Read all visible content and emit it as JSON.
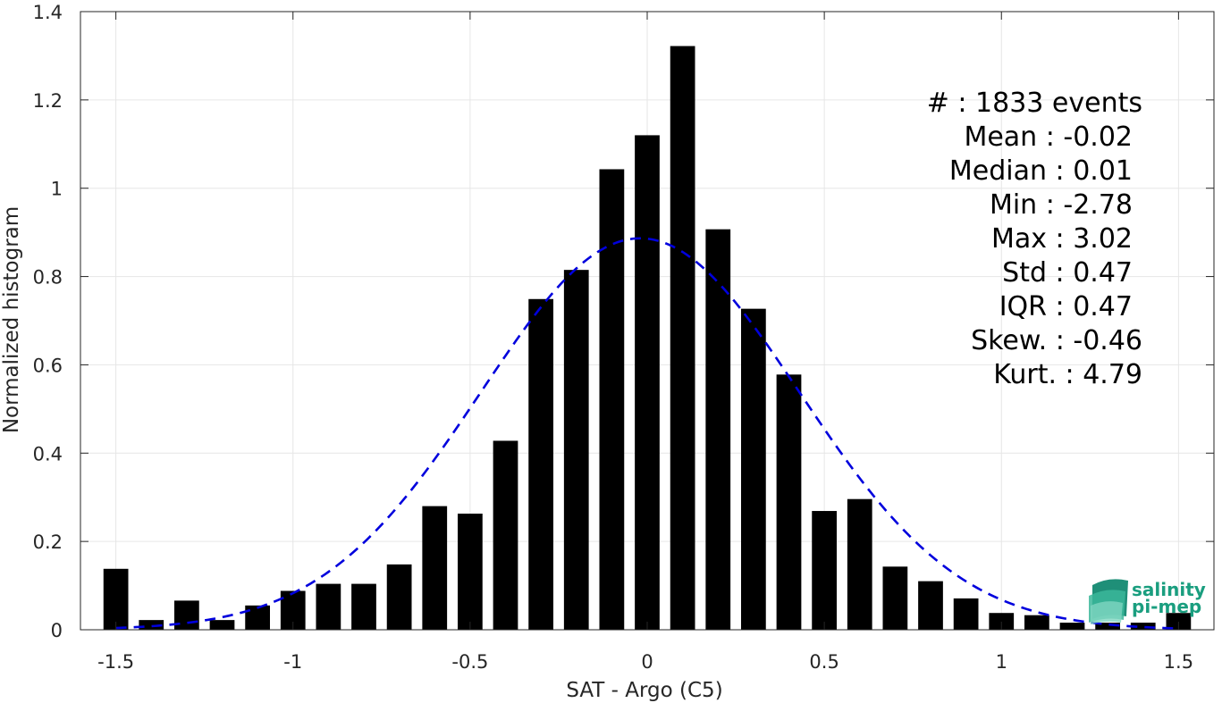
{
  "chart_data": {
    "type": "bar",
    "xlabel": "SAT - Argo (C5)",
    "ylabel": "Normalized histogram",
    "xlim": [
      -1.6,
      1.6
    ],
    "ylim": [
      0,
      1.4
    ],
    "xticks": [
      -1.5,
      -1,
      -0.5,
      0,
      0.5,
      1,
      1.5
    ],
    "xtick_labels": [
      "-1.5",
      "-1",
      "-0.5",
      "0",
      "0.5",
      "1",
      "1.5"
    ],
    "yticks": [
      0,
      0.2,
      0.4,
      0.6,
      0.8,
      1,
      1.2,
      1.4
    ],
    "ytick_labels": [
      "0",
      "0.2",
      "0.4",
      "0.6",
      "0.8",
      "1",
      "1.2",
      "1.4"
    ],
    "grid": true,
    "bar_width": 0.07,
    "bar_color": "#000000",
    "centers": [
      -1.5,
      -1.4,
      -1.3,
      -1.2,
      -1.1,
      -1.0,
      -0.9,
      -0.8,
      -0.7,
      -0.6,
      -0.5,
      -0.4,
      -0.3,
      -0.2,
      -0.1,
      0.0,
      0.1,
      0.2,
      0.3,
      0.4,
      0.5,
      0.6,
      0.7,
      0.8,
      0.9,
      1.0,
      1.1,
      1.2,
      1.3,
      1.4,
      1.5
    ],
    "values": [
      0.138,
      0.022,
      0.066,
      0.022,
      0.055,
      0.088,
      0.104,
      0.104,
      0.148,
      0.28,
      0.263,
      0.428,
      0.749,
      0.815,
      1.043,
      1.12,
      1.322,
      0.907,
      0.727,
      0.578,
      0.269,
      0.296,
      0.143,
      0.11,
      0.071,
      0.038,
      0.033,
      0.016,
      0.016,
      0.016,
      0.038
    ],
    "fit_curve": {
      "style": "dashed",
      "color": "#0000dd",
      "mean": -0.02,
      "std": 0.45,
      "x_range": [
        -1.5,
        1.5
      ]
    },
    "annotations": [
      "#  : 1833 events",
      "Mean : -0.02",
      "Median : 0.01",
      "Min : -2.78",
      "Max : 3.02",
      "Std : 0.47",
      "IQR : 0.47",
      "Skew. : -0.46",
      "Kurt. : 4.79"
    ]
  },
  "logo": {
    "line1": "salinity",
    "line2": "pi-mep",
    "color": "#1a9e7f"
  }
}
